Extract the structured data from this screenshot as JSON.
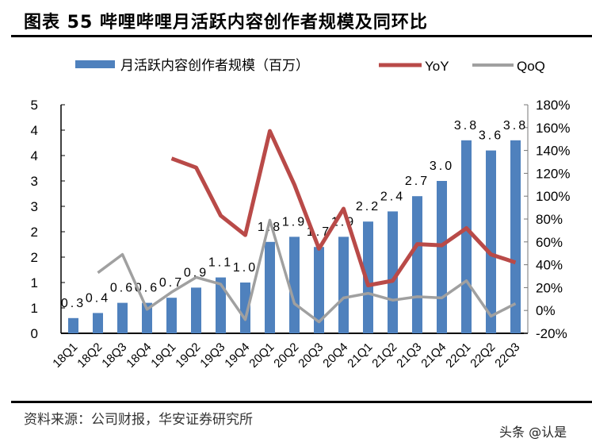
{
  "title": "图表 55 哔哩哔哩月活跃内容创作者规模及同环比",
  "source": "资料来源：公司财报，华安证券研究所",
  "watermark": "头条 @认是",
  "chart_data": {
    "type": "bar+line",
    "categories": [
      "18Q1",
      "18Q2",
      "18Q3",
      "18Q4",
      "19Q1",
      "19Q2",
      "19Q3",
      "19Q4",
      "20Q1",
      "20Q2",
      "20Q3",
      "20Q4",
      "21Q1",
      "21Q2",
      "21Q3",
      "21Q4",
      "22Q1",
      "22Q2",
      "22Q3"
    ],
    "series": [
      {
        "name": "月活跃内容创作者规模（百万）",
        "type": "bar",
        "axis": "left",
        "color": "#4f81bd",
        "values": [
          0.3,
          0.4,
          0.6,
          0.6,
          0.7,
          0.9,
          1.1,
          1.0,
          1.8,
          1.9,
          1.7,
          1.9,
          2.2,
          2.4,
          2.7,
          3.0,
          3.8,
          3.6,
          3.8
        ],
        "labels": [
          "0.3",
          "0.4",
          "0.6",
          "0.6",
          "0.7",
          "0.9",
          "1.1",
          "1.0",
          "1.8",
          "1.9",
          "1.7",
          "1.9",
          "2.2",
          "2.4",
          "2.7",
          "3.0",
          "3.8",
          "3.6",
          "3.8"
        ]
      },
      {
        "name": "YoY",
        "type": "line",
        "axis": "right",
        "color": "#b94a48",
        "values": [
          null,
          null,
          null,
          null,
          133,
          125,
          83,
          66,
          157,
          110,
          54,
          89,
          22,
          26,
          58,
          57,
          72,
          49,
          42
        ]
      },
      {
        "name": "QoQ",
        "type": "line",
        "axis": "right",
        "color": "#a0a0a0",
        "values": [
          null,
          33,
          49,
          1,
          16,
          29,
          23,
          -8,
          79,
          6,
          -10,
          11,
          15,
          9,
          12,
          11,
          26,
          -5,
          6
        ]
      }
    ],
    "left_axis": {
      "range": [
        0,
        4.5
      ],
      "step": 0.5,
      "tick_labels": [
        "0",
        "1",
        "1",
        "2",
        "2",
        "3",
        "3",
        "4",
        "4",
        "5"
      ]
    },
    "right_axis": {
      "range": [
        -20,
        180
      ],
      "step": 20,
      "tick_labels": [
        "-20%",
        "0%",
        "20%",
        "40%",
        "60%",
        "80%",
        "100%",
        "120%",
        "140%",
        "160%",
        "180%"
      ]
    },
    "legend": "top",
    "grid": false
  }
}
